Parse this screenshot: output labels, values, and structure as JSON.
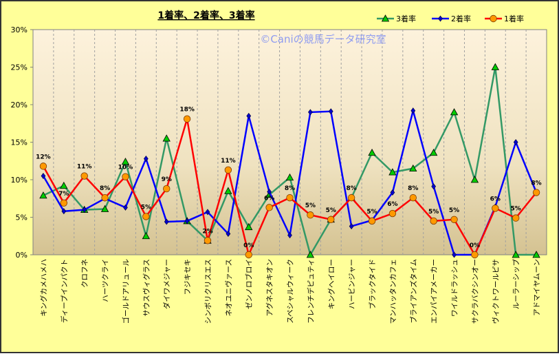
{
  "chart_data": {
    "type": "line",
    "title": "1着率、2着率、3着率",
    "watermark": "©Caniの競馬データ研究室",
    "xlabel": "",
    "ylabel": "",
    "ylim": [
      0,
      30
    ],
    "yticks": [
      "0%",
      "5%",
      "10%",
      "15%",
      "20%",
      "25%",
      "30%"
    ],
    "grid": "vertical-dashed",
    "legend_position": "top-right",
    "categories": [
      "キングカメハメハ",
      "ディープインパクト",
      "クロフネ",
      "ハーツクライ",
      "ゴールドアリュール",
      "サウスヴィグラス",
      "ダイワメジャー",
      "フジキセキ",
      "シンボリクリスエス",
      "ネオユニヴァース",
      "ゼンノロブロイ",
      "アグネスタキオン",
      "スペシャルウィーク",
      "フレンチデピュティ",
      "キングヘイロー",
      "ハービンジャー",
      "ブラックタイド",
      "マンハッタンカフェ",
      "ブライアンズタイム",
      "エンパイアメーカー",
      "ワイルドラッシュ",
      "サクラバクシンオー",
      "ヴィクトワールピサ",
      "ルーラーシップ",
      "アドマイヤムーン"
    ],
    "series": [
      {
        "name": "3着率",
        "color": "#339966",
        "marker": "triangle",
        "marker_color": "#00cc00",
        "values": [
          7.9,
          9.2,
          6.0,
          6.1,
          12.4,
          2.5,
          15.5,
          4.5,
          1.9,
          8.5,
          3.7,
          8.0,
          10.3,
          0,
          4.7,
          7.6,
          13.6,
          11.0,
          11.5,
          13.6,
          19.0,
          10.0,
          25.0,
          0,
          0
        ]
      },
      {
        "name": "2着率",
        "color": "#0000ff",
        "marker": "diamond",
        "marker_color": "#0000cc",
        "values": [
          10.5,
          5.8,
          6.0,
          7.5,
          6.3,
          12.8,
          4.4,
          4.5,
          5.7,
          2.8,
          18.5,
          8.4,
          2.6,
          19.0,
          19.1,
          3.8,
          4.6,
          8.3,
          19.2,
          9.1,
          0,
          0,
          6.4,
          15.0,
          8.3
        ]
      },
      {
        "name": "1着率",
        "color": "#ff0000",
        "marker": "circle",
        "marker_color": "#ff9900",
        "values": [
          11.8,
          6.9,
          10.5,
          7.6,
          10.4,
          5.1,
          8.8,
          18.1,
          1.9,
          11.3,
          0,
          6.3,
          7.6,
          5.3,
          4.7,
          7.6,
          4.5,
          5.5,
          7.6,
          4.5,
          4.7,
          0,
          6.2,
          4.9,
          8.3
        ],
        "labels": [
          "12%",
          "7%",
          "11%",
          "8%",
          "10%",
          "5%",
          "9%",
          "18%",
          "2%",
          "11%",
          "0%",
          "6%",
          "8%",
          "5%",
          "5%",
          "8%",
          "5%",
          "6%",
          "8%",
          "5%",
          "5%",
          "0%",
          "6%",
          "5%",
          "8%"
        ]
      }
    ]
  }
}
